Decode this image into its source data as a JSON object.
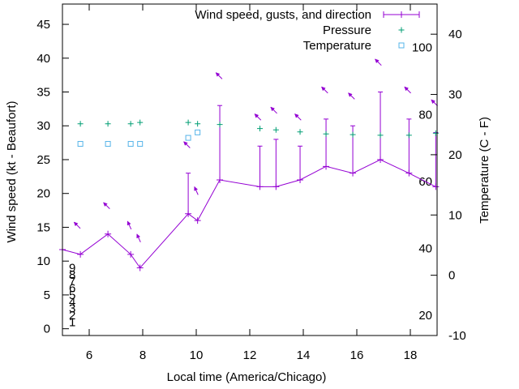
{
  "chart_data": {
    "type": "line",
    "x_axis": {
      "label": "Local time (America/Chicago)",
      "range": [
        5,
        19
      ],
      "ticks": [
        6,
        8,
        10,
        12,
        14,
        16,
        18
      ]
    },
    "y_axis_left": {
      "label": "Wind speed (kt - Beaufort)",
      "range": [
        -1,
        48
      ],
      "ticks": [
        0,
        5,
        10,
        15,
        20,
        25,
        30,
        35,
        40,
        45
      ],
      "beaufort_labels": [
        {
          "value": 1,
          "label": "1"
        },
        {
          "value": 2,
          "label": "2"
        },
        {
          "value": 3,
          "label": "3"
        },
        {
          "value": 4,
          "label": "4"
        },
        {
          "value": 5,
          "label": "5"
        },
        {
          "value": 6,
          "label": "6"
        },
        {
          "value": 7,
          "label": "7"
        },
        {
          "value": 8,
          "label": "8"
        },
        {
          "value": 9,
          "label": "9"
        }
      ]
    },
    "y_axis_right": {
      "label": "Temperature (C - F)",
      "range": [
        -10,
        45
      ],
      "ticks": [
        -10,
        0,
        10,
        20,
        30,
        40
      ],
      "fahrenheit_labels": [
        {
          "value": 20,
          "label": "20"
        },
        {
          "value": 40,
          "label": "40"
        },
        {
          "value": 60,
          "label": "60"
        },
        {
          "value": 80,
          "label": "80"
        },
        {
          "value": 100,
          "label": "100"
        }
      ]
    },
    "legend": {
      "placement": "top-right",
      "entries": [
        "Wind speed, gusts, and direction",
        "Pressure",
        "Temperature"
      ]
    },
    "series": [
      {
        "name": "Wind speed, gusts, and direction",
        "color": "#9400d3",
        "style": "line-with-errorbars",
        "points": [
          {
            "x": 5.0,
            "y": 11.7
          },
          {
            "x": 5.67,
            "y": 11
          },
          {
            "x": 6.7,
            "y": 14
          },
          {
            "x": 7.55,
            "y": 11
          },
          {
            "x": 7.9,
            "y": 9
          },
          {
            "x": 9.7,
            "y": 17,
            "gust": 23
          },
          {
            "x": 10.05,
            "y": 16
          },
          {
            "x": 10.88,
            "y": 22,
            "gust": 33
          },
          {
            "x": 12.38,
            "y": 21,
            "gust": 27
          },
          {
            "x": 12.98,
            "y": 21,
            "gust": 28
          },
          {
            "x": 13.88,
            "y": 22,
            "gust": 27
          },
          {
            "x": 14.85,
            "y": 24,
            "gust": 31
          },
          {
            "x": 15.85,
            "y": 23,
            "gust": 30
          },
          {
            "x": 16.88,
            "y": 25,
            "gust": 35
          },
          {
            "x": 17.95,
            "y": 23,
            "gust": 31
          },
          {
            "x": 18.95,
            "y": 21,
            "gust": 29
          }
        ]
      },
      {
        "name": "Pressure",
        "color": "#009e73",
        "marker": "plus",
        "points": [
          {
            "x": 5.67,
            "y": 30.3
          },
          {
            "x": 6.7,
            "y": 30.3
          },
          {
            "x": 7.55,
            "y": 30.3
          },
          {
            "x": 7.9,
            "y": 30.5
          },
          {
            "x": 9.7,
            "y": 30.5
          },
          {
            "x": 10.05,
            "y": 30.3
          },
          {
            "x": 10.88,
            "y": 30.2
          },
          {
            "x": 12.38,
            "y": 29.6
          },
          {
            "x": 12.98,
            "y": 29.4
          },
          {
            "x": 13.88,
            "y": 29.1
          },
          {
            "x": 14.85,
            "y": 28.8
          },
          {
            "x": 15.85,
            "y": 28.7
          },
          {
            "x": 16.88,
            "y": 28.6
          },
          {
            "x": 17.95,
            "y": 28.6
          },
          {
            "x": 18.95,
            "y": 28.9
          }
        ]
      },
      {
        "name": "Temperature",
        "color": "#56b4e9",
        "marker": "square",
        "axis": "right",
        "points": [
          {
            "x": 5.67,
            "y": 21.8
          },
          {
            "x": 6.7,
            "y": 21.8
          },
          {
            "x": 7.55,
            "y": 21.8
          },
          {
            "x": 7.9,
            "y": 21.8
          },
          {
            "x": 9.7,
            "y": 22.8
          },
          {
            "x": 10.05,
            "y": 23.7
          }
        ]
      }
    ],
    "wind_direction_arrows": [
      {
        "x": 5.55,
        "y": 15.3,
        "dir": "nw"
      },
      {
        "x": 6.65,
        "y": 18.2,
        "dir": "nw"
      },
      {
        "x": 7.5,
        "y": 15.3,
        "dir": "nnw"
      },
      {
        "x": 7.85,
        "y": 13.4,
        "dir": "nnw"
      },
      {
        "x": 9.65,
        "y": 27.2,
        "dir": "nw"
      },
      {
        "x": 10.0,
        "y": 20.4,
        "dir": "nnw"
      },
      {
        "x": 10.85,
        "y": 37.4,
        "dir": "nw"
      },
      {
        "x": 12.3,
        "y": 31.3,
        "dir": "nw"
      },
      {
        "x": 12.9,
        "y": 32.3,
        "dir": "nw"
      },
      {
        "x": 13.8,
        "y": 31.3,
        "dir": "nw"
      },
      {
        "x": 14.8,
        "y": 35.3,
        "dir": "nw"
      },
      {
        "x": 15.8,
        "y": 34.4,
        "dir": "nw"
      },
      {
        "x": 16.8,
        "y": 39.4,
        "dir": "nw"
      },
      {
        "x": 17.9,
        "y": 35.3,
        "dir": "nw"
      },
      {
        "x": 18.9,
        "y": 33.4,
        "dir": "nw"
      }
    ]
  }
}
